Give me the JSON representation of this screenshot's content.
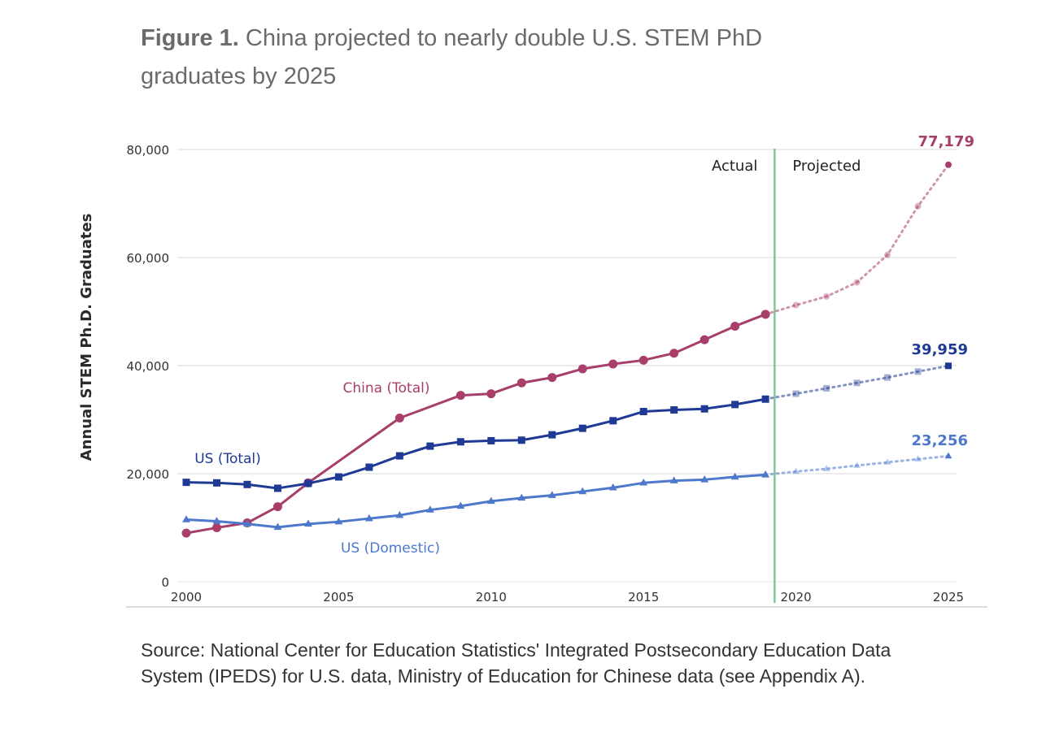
{
  "figure": {
    "title_bold": "Figure 1.",
    "title_rest": " China projected to nearly double U.S. STEM PhD graduates by 2025",
    "source": "Source: National Center for Education Statistics' Integrated Postsecondary Education Data System (IPEDS) for U.S. data, Ministry of Education for Chinese data (see Appendix A)."
  },
  "chart_data": {
    "type": "line",
    "title": "China projected to nearly double U.S. STEM PhD graduates by 2025",
    "xlabel": "",
    "ylabel": "Annual STEM Ph.D. Graduates",
    "xlim": [
      2000,
      2025
    ],
    "ylim": [
      0,
      80000
    ],
    "grid": true,
    "x_ticks": [
      2000,
      2005,
      2010,
      2015,
      2020,
      2025
    ],
    "y_ticks": [
      0,
      20000,
      40000,
      60000,
      80000
    ],
    "y_tick_labels": [
      "0",
      "20,000",
      "40,000",
      "60,000",
      "80,000"
    ],
    "divider_x": 2019.3,
    "region_labels": {
      "actual": "Actual",
      "projected": "Projected"
    },
    "series": [
      {
        "name": "China (Total)",
        "label": "China (Total)",
        "color": "#a83f6b",
        "marker": "circle",
        "actual_x": [
          2000,
          2001,
          2002,
          2003,
          2004,
          2007,
          2009,
          2010,
          2011,
          2012,
          2013,
          2014,
          2015,
          2016,
          2017,
          2018,
          2019
        ],
        "actual_y": [
          9000,
          10000,
          10900,
          13900,
          18300,
          30300,
          34500,
          34800,
          36800,
          37800,
          39400,
          40300,
          41000,
          42300,
          44800,
          47300,
          49500
        ],
        "projected_x": [
          2019,
          2020,
          2021,
          2022,
          2023,
          2024,
          2025
        ],
        "projected_y": [
          49500,
          51200,
          52800,
          55400,
          60500,
          69500,
          77179
        ],
        "end_label": "77,179"
      },
      {
        "name": "US (Total)",
        "label": "US (Total)",
        "color": "#1e3a94",
        "marker": "square",
        "actual_x": [
          2000,
          2001,
          2002,
          2003,
          2004,
          2005,
          2006,
          2007,
          2008,
          2009,
          2010,
          2011,
          2012,
          2013,
          2014,
          2015,
          2016,
          2017,
          2018,
          2019
        ],
        "actual_y": [
          18400,
          18300,
          18000,
          17300,
          18200,
          19400,
          21200,
          23300,
          25100,
          25900,
          26100,
          26200,
          27200,
          28400,
          29800,
          31500,
          31800,
          32000,
          32800,
          33800
        ],
        "projected_x": [
          2019,
          2020,
          2021,
          2022,
          2023,
          2024,
          2025
        ],
        "projected_y": [
          33800,
          34800,
          35800,
          36800,
          37800,
          38900,
          39959
        ],
        "end_label": "39,959"
      },
      {
        "name": "US (Domestic)",
        "label": "US (Domestic)",
        "color": "#4d78cc",
        "marker": "triangle",
        "actual_x": [
          2000,
          2001,
          2002,
          2003,
          2004,
          2005,
          2006,
          2007,
          2008,
          2009,
          2010,
          2011,
          2012,
          2013,
          2014,
          2015,
          2016,
          2017,
          2018,
          2019
        ],
        "actual_y": [
          11500,
          11200,
          10700,
          10100,
          10700,
          11100,
          11700,
          12300,
          13300,
          14000,
          14900,
          15500,
          16000,
          16700,
          17400,
          18300,
          18700,
          18900,
          19400,
          19800
        ],
        "projected_x": [
          2019,
          2020,
          2021,
          2022,
          2023,
          2024,
          2025
        ],
        "projected_y": [
          19800,
          20400,
          20900,
          21500,
          22100,
          22700,
          23256
        ],
        "end_label": "23,256"
      }
    ]
  }
}
